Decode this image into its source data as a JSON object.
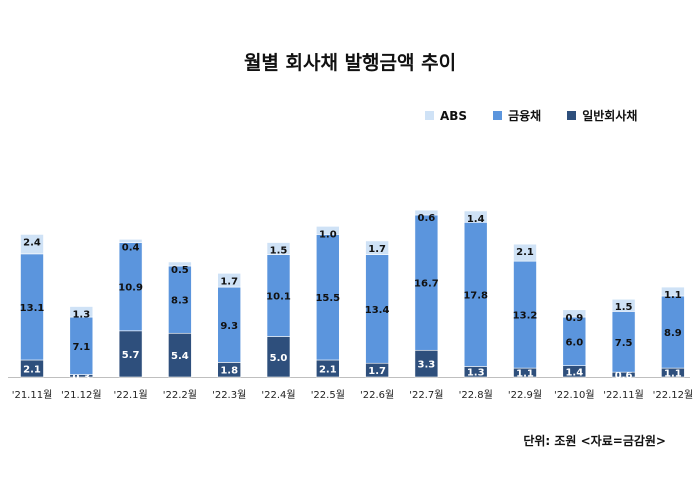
{
  "chart_data": {
    "type": "bar",
    "stacked": true,
    "title": "월별 회사채 발행금액 추이",
    "unit_label": "단위: 조원 <자료=금감원>",
    "legend_position": "top-right",
    "categories": [
      "'21.11월",
      "'21.12월",
      "'22.1월",
      "'22.2월",
      "'22.3월",
      "'22.4월",
      "'22.5월",
      "'22.6월",
      "'22.7월",
      "'22.8월",
      "'22.9월",
      "'22.10월",
      "'22.11월",
      "'22.12월"
    ],
    "series": [
      {
        "name": "일반회사채",
        "color": "#2e4f7c",
        "values": [
          2.1,
          0.3,
          5.7,
          5.4,
          1.8,
          5.0,
          2.1,
          1.7,
          3.3,
          1.3,
          1.1,
          1.4,
          0.6,
          1.1
        ]
      },
      {
        "name": "금융채",
        "color": "#5b95dd",
        "values": [
          13.1,
          7.1,
          10.9,
          8.3,
          9.3,
          10.1,
          15.5,
          13.4,
          16.7,
          17.8,
          13.2,
          6.0,
          7.5,
          8.9
        ]
      },
      {
        "name": "ABS",
        "color": "#cfe2f6",
        "values": [
          2.4,
          1.3,
          0.4,
          0.5,
          1.7,
          1.5,
          1.0,
          1.7,
          0.6,
          1.4,
          2.1,
          0.9,
          1.5,
          1.1
        ]
      }
    ],
    "legend_order": [
      "ABS",
      "금융채",
      "일반회사채"
    ],
    "grid": false
  }
}
